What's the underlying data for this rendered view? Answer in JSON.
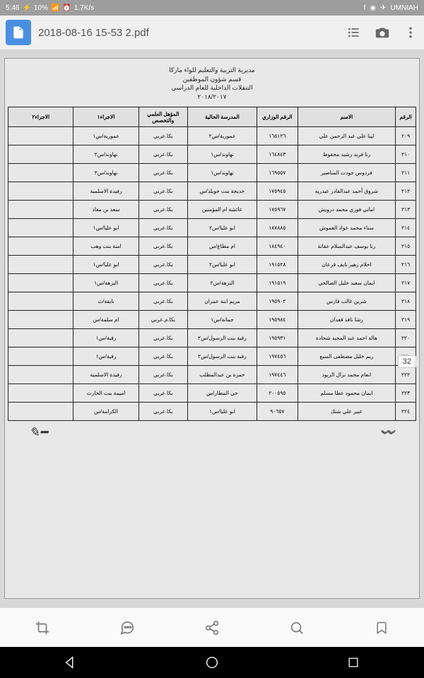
{
  "statusBar": {
    "time": "5:46",
    "battery": "10%",
    "speed": "1.7K/s",
    "carrier": "UMNIAH"
  },
  "topBar": {
    "fileName": "2018-08-16 15-53 2.pdf"
  },
  "document": {
    "headerLines": {
      "l1": "مديرية التربية والتعليم للواء ماركا",
      "l2": "قسم شؤون الموظفين",
      "l3": "التنقلات الداخلية للعام الدراسي",
      "l4": "٢٠١٨/٢٠١٧"
    },
    "pageBadge": "32",
    "columns": {
      "c1": "الرقم",
      "c2": "الاسم",
      "c3": "الرقم الوزاري",
      "c4": "المدرسة الحالية",
      "c5": "المؤهل العلمي والتخصص",
      "c6": "الاجراء١",
      "c7": "الاجراء٢"
    },
    "rows": [
      {
        "num": "٢٠٩",
        "name": "لينا علي عبد الرحمن علي",
        "min": "١٦٥١٢٦",
        "school": "عمورية/س٢",
        "qual": "بكا.عربي",
        "p1": "عمورية/س١",
        "p2": ""
      },
      {
        "num": "٢١٠",
        "name": "رنا فريد رشيد محفوظ",
        "min": "١٦٤٨٤٣",
        "school": "نهاوند/س١",
        "qual": "بكا.عربي",
        "p1": "نهاوند/س٢",
        "p2": ""
      },
      {
        "num": "٢١١",
        "name": "فردوس جودت المناصير",
        "min": "١٦٩٥٥٧",
        "school": "نهاوند/س١",
        "qual": "بكا.عربي",
        "p1": "نهاوند/س٢",
        "p2": ""
      },
      {
        "num": "٢١٢",
        "name": "شروق أحمد عبدالقادر عيدريه",
        "min": "١٧٥٩٤٥",
        "school": "خديجة بنت خويلد/س",
        "qual": "بكا.عربي",
        "p1": "رفيدة الاسلمية",
        "p2": ""
      },
      {
        "num": "٢١٣",
        "name": "اماني فوزي محمد درويش",
        "min": "١٧٥٩٦٧",
        "school": "عائشة ام المؤمنين",
        "qual": "بكا.عربي",
        "p1": "سعد بن معاذ",
        "p2": ""
      },
      {
        "num": "٢١٤",
        "name": "سناء محمد عواد العموش",
        "min": "١٨٧٨٨٥",
        "school": "ابو عليا/س٢",
        "qual": "بكا.عربي",
        "p1": "ابو عليا/س١",
        "p2": ""
      },
      {
        "num": "٢١٥",
        "name": "رنا يوسف عبدالسلام عفانة",
        "min": "١٨٤٩٤٠",
        "school": "ام مطاع/س",
        "qual": "بكا.عربي",
        "p1": "امنة بنت وهب",
        "p2": ""
      },
      {
        "num": "٢١٦",
        "name": "احلام زهير نايف قرعان",
        "min": "١٩١٥٢٨",
        "school": "ابو عليا/س٢",
        "qual": "بكا.عربي",
        "p1": "ابو عليا/س١",
        "p2": ""
      },
      {
        "num": "٢١٧",
        "name": "ايمان سعيد خليل الصالحي",
        "min": "١٩١٥١٩",
        "school": "النزهة/س٢",
        "qual": "بكا.عربي",
        "p1": "النزهة/س١",
        "p2": ""
      },
      {
        "num": "٢١٨",
        "name": "شرين غالب فارس",
        "min": "١٩٥٩٠٢",
        "school": "مريم ابنة عمران",
        "qual": "بكا.عربي",
        "p1": "نايفة/ث",
        "p2": ""
      },
      {
        "num": "٢١٩",
        "name": "رشا نافذ قعدان",
        "min": "١٩٥٩٨٤",
        "school": "جمانة/س١",
        "qual": "بكا.م.عربي",
        "p1": "ام سلمة/س",
        "p2": ""
      },
      {
        "num": "٢٢٠",
        "name": "هالة احمد عبد المجيد شحادة",
        "min": "١٩٥٩٣١",
        "school": "رقية بنت الرسول/س٢",
        "qual": "بكا.عربي",
        "p1": "رقية/س١",
        "p2": ""
      },
      {
        "num": "٢٢١",
        "name": "ريم خليل مصطفى السبع",
        "min": "١٩٧٤٥٦",
        "school": "رقية بنت الرسول/س٢",
        "qual": "بكا.عربي",
        "p1": "رقية/س١",
        "p2": ""
      },
      {
        "num": "٢٢٢",
        "name": "انعام محمد نزال الزيود",
        "min": "١٩٧٤٤٦",
        "school": "حمزة بن عبدالمطلب",
        "qual": "بكا.عربي",
        "p1": "رفيدة الاسلمية",
        "p2": ""
      },
      {
        "num": "٢٢٣",
        "name": "ايمان محمود عطا مسلم",
        "min": "٢٠٠٥٩٥",
        "school": "حي المطار/س",
        "qual": "بكا.عربي",
        "p1": "اميمة بنت الحارث",
        "p2": ""
      },
      {
        "num": "٢٢٤",
        "name": "عبير علي شنك",
        "min": "٩٠٦٥٧",
        "school": "ابو عليا/س١",
        "qual": "بكا.عربي",
        "p1": "الكرامة/س",
        "p2": ""
      }
    ]
  }
}
